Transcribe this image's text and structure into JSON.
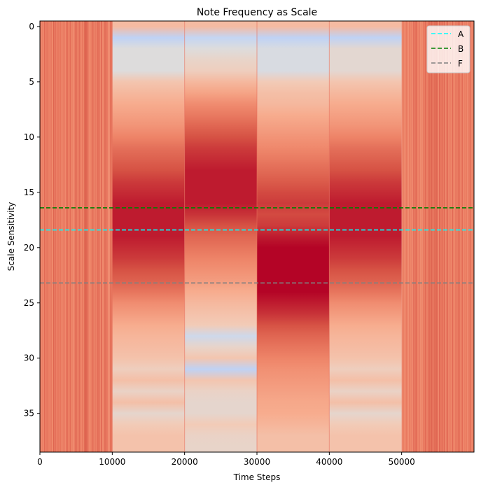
{
  "chart_data": {
    "type": "heatmap",
    "title": "Note Frequency as Scale",
    "xlabel": "Time Steps",
    "ylabel": "Scale Sensitivity",
    "xlim": [
      0,
      60000
    ],
    "ylim": [
      38.5,
      -0.5
    ],
    "xticks": [
      0,
      10000,
      20000,
      30000,
      40000,
      50000
    ],
    "yticks": [
      0,
      5,
      10,
      15,
      20,
      25,
      30,
      35
    ],
    "colormap": "coolwarm",
    "value_range": [
      0,
      1
    ],
    "segments": [
      {
        "x_start": 0,
        "x_end": 10000,
        "noisy": true,
        "value": 0.82
      },
      {
        "x_start": 10000,
        "x_end": 20000,
        "noisy": false,
        "values": [
          0.65,
          0.44,
          0.5,
          0.5,
          0.5,
          0.62,
          0.66,
          0.7,
          0.73,
          0.76,
          0.8,
          0.84,
          0.87,
          0.9,
          0.93,
          0.95,
          0.97,
          0.97,
          0.97,
          0.97,
          0.95,
          0.93,
          0.9,
          0.87,
          0.83,
          0.78,
          0.74,
          0.7,
          0.67,
          0.65,
          0.63,
          0.58,
          0.64,
          0.56,
          0.64,
          0.54,
          0.6,
          0.63,
          0.63
        ]
      },
      {
        "x_start": 20000,
        "x_end": 30000,
        "noisy": false,
        "values": [
          0.65,
          0.45,
          0.5,
          0.55,
          0.58,
          0.66,
          0.72,
          0.78,
          0.82,
          0.86,
          0.9,
          0.93,
          0.95,
          0.97,
          0.97,
          0.97,
          0.97,
          0.94,
          0.9,
          0.86,
          0.83,
          0.8,
          0.77,
          0.74,
          0.7,
          0.66,
          0.63,
          0.6,
          0.47,
          0.55,
          0.62,
          0.44,
          0.62,
          0.56,
          0.54,
          0.54,
          0.6,
          0.56,
          0.55
        ]
      },
      {
        "x_start": 30000,
        "x_end": 40000,
        "noisy": false,
        "values": [
          0.65,
          0.44,
          0.49,
          0.49,
          0.49,
          0.6,
          0.64,
          0.66,
          0.7,
          0.73,
          0.76,
          0.79,
          0.82,
          0.85,
          0.88,
          0.91,
          0.93,
          0.91,
          0.93,
          0.97,
          1.0,
          1.0,
          1.0,
          1.0,
          1.0,
          0.97,
          0.94,
          0.9,
          0.86,
          0.83,
          0.8,
          0.77,
          0.75,
          0.73,
          0.71,
          0.7,
          0.67,
          0.64,
          0.64
        ]
      },
      {
        "x_start": 40000,
        "x_end": 50000,
        "noisy": false,
        "values": [
          0.65,
          0.44,
          0.53,
          0.53,
          0.53,
          0.62,
          0.66,
          0.7,
          0.73,
          0.76,
          0.8,
          0.84,
          0.87,
          0.9,
          0.93,
          0.95,
          0.97,
          0.97,
          0.97,
          0.97,
          0.95,
          0.93,
          0.9,
          0.87,
          0.83,
          0.78,
          0.74,
          0.7,
          0.67,
          0.65,
          0.63,
          0.58,
          0.64,
          0.56,
          0.64,
          0.54,
          0.6,
          0.63,
          0.63
        ]
      },
      {
        "x_start": 50000,
        "x_end": 60000,
        "noisy": true,
        "value": 0.82
      }
    ],
    "hlines": [
      {
        "name": "A",
        "y": 18.4,
        "color": "#00ffff"
      },
      {
        "name": "B",
        "y": 16.4,
        "color": "#008000"
      },
      {
        "name": "F",
        "y": 23.2,
        "color": "#808080"
      }
    ],
    "legend": {
      "placement": "top-right",
      "entries": [
        "A",
        "B",
        "F"
      ]
    }
  }
}
